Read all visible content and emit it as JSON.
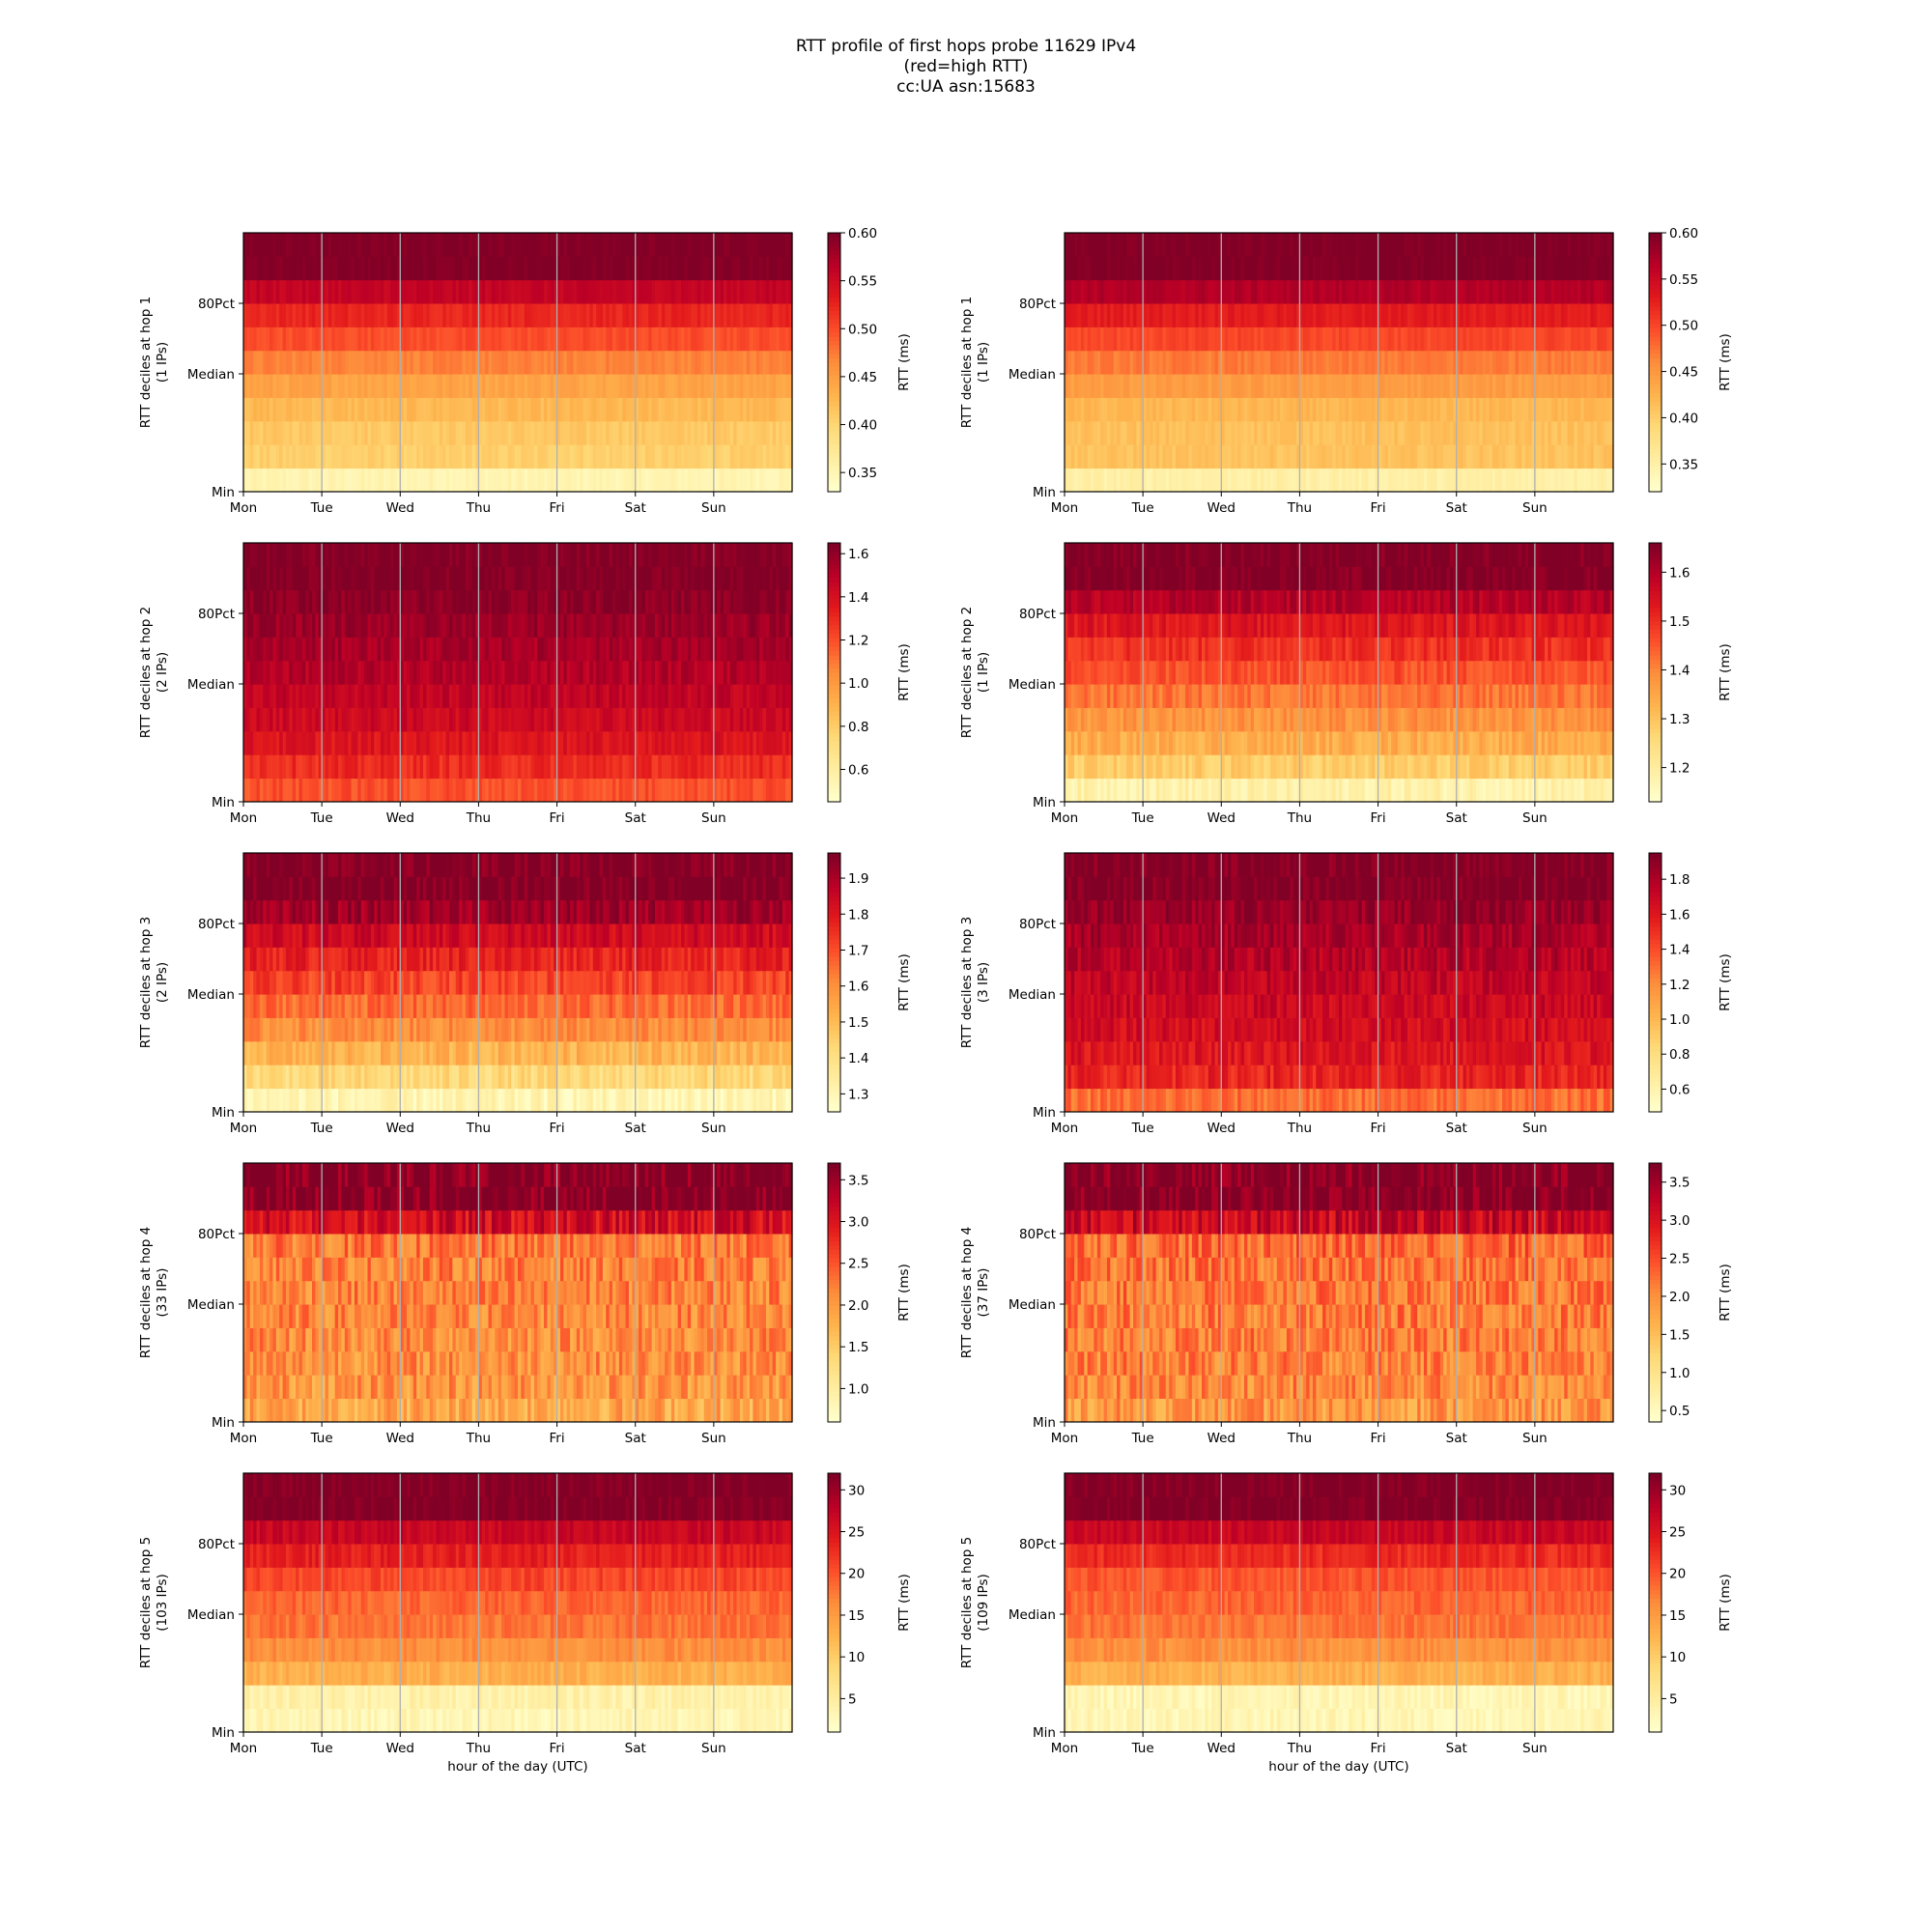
{
  "title_lines": [
    "RTT profile of first hops probe 11629 IPv4",
    "(red=high RTT)",
    "cc:UA asn:15683"
  ],
  "day_labels": [
    "Mon",
    "Tue",
    "Wed",
    "Thu",
    "Fri",
    "Sat",
    "Sun"
  ],
  "y_tick_labels": [
    "80Pct",
    "Median",
    "Min"
  ],
  "x_axis_label": "hour of the day (UTC)",
  "colorbar_label": "RTT (ms)",
  "colors": {
    "colormap": "YlOrRd",
    "stops": [
      "#ffffcc",
      "#ffeda0",
      "#fed976",
      "#feb24c",
      "#fd8d3c",
      "#fc4e2a",
      "#e31a1c",
      "#bd0026",
      "#800026"
    ]
  },
  "chart_data": [
    {
      "type": "heatmap",
      "ylabel": "RTT deciles at hop 1",
      "ylabel_sub": "(1 IPs)",
      "xlabel": "",
      "cbar_ticks": [
        "0.35",
        "0.40",
        "0.45",
        "0.50",
        "0.55",
        "0.60"
      ],
      "cbar_range": [
        0.33,
        0.6
      ],
      "deciles_ms": [
        0.35,
        0.405,
        0.412,
        0.425,
        0.445,
        0.47,
        0.5,
        0.525,
        0.56,
        0.6
      ],
      "variability": 0.03
    },
    {
      "type": "heatmap",
      "ylabel": "RTT deciles at hop 1",
      "ylabel_sub": "(1 IPs)",
      "xlabel": "",
      "cbar_ticks": [
        "0.35",
        "0.40",
        "0.45",
        "0.50",
        "0.55",
        "0.60"
      ],
      "cbar_range": [
        0.32,
        0.6
      ],
      "deciles_ms": [
        0.35,
        0.41,
        0.412,
        0.42,
        0.445,
        0.47,
        0.5,
        0.53,
        0.57,
        0.6
      ],
      "variability": 0.03
    },
    {
      "type": "heatmap",
      "ylabel": "RTT deciles at hop 2",
      "ylabel_sub": "(2 IPs)",
      "xlabel": "",
      "cbar_ticks": [
        "0.6",
        "0.8",
        "1.0",
        "1.2",
        "1.4",
        "1.6"
      ],
      "cbar_range": [
        0.45,
        1.65
      ],
      "deciles_ms": [
        1.2,
        1.3,
        1.38,
        1.44,
        1.48,
        1.52,
        1.55,
        1.58,
        1.62,
        1.65
      ],
      "variability": 0.05
    },
    {
      "type": "heatmap",
      "ylabel": "RTT deciles at hop 2",
      "ylabel_sub": "(1 IPs)",
      "xlabel": "",
      "cbar_ticks": [
        "1.2",
        "1.3",
        "1.4",
        "1.5",
        "1.6"
      ],
      "cbar_range": [
        1.13,
        1.66
      ],
      "deciles_ms": [
        1.18,
        1.28,
        1.34,
        1.38,
        1.42,
        1.46,
        1.5,
        1.54,
        1.6,
        1.66
      ],
      "variability": 0.06
    },
    {
      "type": "heatmap",
      "ylabel": "RTT deciles at hop 3",
      "ylabel_sub": "(2 IPs)",
      "xlabel": "",
      "cbar_ticks": [
        "1.3",
        "1.4",
        "1.5",
        "1.6",
        "1.7",
        "1.8",
        "1.9"
      ],
      "cbar_range": [
        1.25,
        1.97
      ],
      "deciles_ms": [
        1.3,
        1.42,
        1.52,
        1.6,
        1.66,
        1.72,
        1.78,
        1.84,
        1.92,
        1.97
      ],
      "variability": 0.07
    },
    {
      "type": "heatmap",
      "ylabel": "RTT deciles at hop 3",
      "ylabel_sub": "(3 IPs)",
      "xlabel": "",
      "cbar_ticks": [
        "0.6",
        "0.8",
        "1.0",
        "1.2",
        "1.4",
        "1.6",
        "1.8"
      ],
      "cbar_range": [
        0.47,
        1.95
      ],
      "deciles_ms": [
        1.3,
        1.55,
        1.62,
        1.66,
        1.7,
        1.74,
        1.78,
        1.82,
        1.88,
        1.95
      ],
      "variability": 0.07
    },
    {
      "type": "heatmap",
      "ylabel": "RTT deciles at hop 4",
      "ylabel_sub": "(33 IPs)",
      "xlabel": "",
      "cbar_ticks": [
        "1.0",
        "1.5",
        "2.0",
        "2.5",
        "3.0",
        "3.5"
      ],
      "cbar_range": [
        0.6,
        3.7
      ],
      "deciles_ms": [
        1.9,
        2.05,
        2.1,
        2.12,
        2.15,
        2.18,
        2.2,
        2.25,
        3.1,
        3.7
      ],
      "variability": 0.12
    },
    {
      "type": "heatmap",
      "ylabel": "RTT deciles at hop 4",
      "ylabel_sub": "(37 IPs)",
      "xlabel": "",
      "cbar_ticks": [
        "0.5",
        "1.0",
        "1.5",
        "2.0",
        "2.5",
        "3.0",
        "3.5"
      ],
      "cbar_range": [
        0.35,
        3.75
      ],
      "deciles_ms": [
        1.9,
        2.05,
        2.1,
        2.12,
        2.15,
        2.18,
        2.2,
        2.3,
        3.2,
        3.75
      ],
      "variability": 0.12
    },
    {
      "type": "heatmap",
      "ylabel": "RTT deciles at hop 5",
      "ylabel_sub": "(103 IPs)",
      "xlabel": "hour of the day (UTC)",
      "cbar_ticks": [
        "5",
        "10",
        "15",
        "20",
        "25",
        "30"
      ],
      "cbar_range": [
        1,
        32
      ],
      "deciles_ms": [
        3,
        4,
        13,
        16,
        18,
        19,
        21,
        24,
        27,
        32
      ],
      "variability": 0.05
    },
    {
      "type": "heatmap",
      "ylabel": "RTT deciles at hop 5",
      "ylabel_sub": "(109 IPs)",
      "xlabel": "hour of the day (UTC)",
      "cbar_ticks": [
        "5",
        "10",
        "15",
        "20",
        "25",
        "30"
      ],
      "cbar_range": [
        1,
        32
      ],
      "deciles_ms": [
        3,
        3,
        13,
        16,
        18,
        19,
        20,
        23,
        27,
        32
      ],
      "variability": 0.05
    }
  ]
}
